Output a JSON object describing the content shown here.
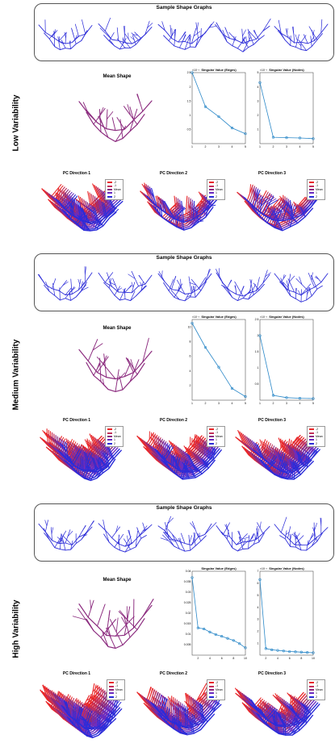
{
  "figure": {
    "rows": [
      {
        "label": "Low Variability",
        "sample_title": "Sample Shape Graphs",
        "mean_title": "Mean Shape",
        "pc_titles": [
          "PC Direction 1",
          "PC Direction 2",
          "PC Direction 3"
        ],
        "legend": [
          "-2",
          "-1",
          "Mean",
          "1",
          "2"
        ]
      },
      {
        "label": "Medium Variability",
        "sample_title": "Sample Shape Graphs",
        "mean_title": "Mean Shape",
        "pc_titles": [
          "PC Direction 1",
          "PC Direction 2",
          "PC Direction 3"
        ],
        "legend": [
          "-2",
          "-1",
          "Mean",
          "1",
          "2"
        ]
      },
      {
        "label": "High Variability",
        "sample_title": "Sample Shape Graphs",
        "mean_title": "Mean Shape",
        "pc_titles": [
          "PC Direction 1",
          "PC Direction 2",
          "PC Direction 3"
        ],
        "legend": [
          "-2",
          "-1",
          "Mean",
          "1",
          "2"
        ]
      }
    ],
    "colors": {
      "shape": "#2c2cd8",
      "mean": "#8b2a7e",
      "neg": "#e8282a",
      "chart": "#2b88c8"
    }
  },
  "chart_data": [
    {
      "type": "line",
      "title": "Singular Value (Edges)",
      "exponent_label": "×10⁻³",
      "x": [
        1,
        2,
        3,
        4,
        5
      ],
      "y": [
        2.5,
        1.3,
        0.95,
        0.55,
        0.35
      ],
      "xlim": [
        1,
        5
      ],
      "ylim": [
        0,
        2.5
      ],
      "xticks": [
        1,
        2,
        3,
        4,
        5
      ],
      "yticks": [
        0.5,
        1,
        1.5,
        2,
        2.5
      ]
    },
    {
      "type": "line",
      "title": "Singular Value (Nodes)",
      "exponent_label": "×10⁻³",
      "x": [
        1,
        2,
        3,
        4,
        5
      ],
      "y": [
        4.3,
        0.45,
        0.42,
        0.4,
        0.35
      ],
      "xlim": [
        1,
        5
      ],
      "ylim": [
        0,
        5
      ],
      "xticks": [
        1,
        2,
        3,
        4,
        5
      ],
      "yticks": [
        1,
        2,
        3,
        4,
        5
      ]
    },
    {
      "type": "line",
      "title": "Singular Value (Edges)",
      "exponent_label": "×10⁻³",
      "x": [
        1,
        2,
        3,
        4,
        5
      ],
      "y": [
        10.5,
        7.2,
        4.5,
        1.6,
        0.5
      ],
      "xlim": [
        1,
        5
      ],
      "ylim": [
        0,
        11
      ],
      "xticks": [
        1,
        2,
        3,
        4,
        5
      ],
      "yticks": [
        2,
        4,
        6,
        8,
        10
      ]
    },
    {
      "type": "line",
      "title": "Singular Value (Nodes)",
      "exponent_label": "×10⁻³",
      "x": [
        1,
        2,
        3,
        4,
        5
      ],
      "y": [
        2.0,
        0.15,
        0.08,
        0.06,
        0.05
      ],
      "xlim": [
        1,
        5
      ],
      "ylim": [
        0,
        2.5
      ],
      "xticks": [
        1,
        2,
        3,
        4,
        5
      ],
      "yticks": [
        0.5,
        1,
        1.5,
        2,
        2.5
      ]
    },
    {
      "type": "line",
      "title": "Singular Value (Edges)",
      "exponent_label": "",
      "x": [
        1,
        2,
        3,
        4,
        5,
        6,
        7,
        8,
        9,
        10
      ],
      "y": [
        0.037,
        0.013,
        0.0125,
        0.011,
        0.0098,
        0.009,
        0.008,
        0.007,
        0.0055,
        0.0035
      ],
      "xlim": [
        1,
        10
      ],
      "ylim": [
        0,
        0.04
      ],
      "xticks": [
        2,
        4,
        6,
        8,
        10
      ],
      "yticks": [
        0.005,
        0.01,
        0.015,
        0.02,
        0.025,
        0.03,
        0.035,
        0.04
      ]
    },
    {
      "type": "line",
      "title": "Singular Value (Nodes)",
      "exponent_label": "×10⁻³",
      "x": [
        1,
        2,
        3,
        4,
        5,
        6,
        7,
        8,
        9,
        10
      ],
      "y": [
        6.3,
        0.55,
        0.45,
        0.4,
        0.35,
        0.3,
        0.28,
        0.25,
        0.22,
        0.2
      ],
      "xlim": [
        1,
        10
      ],
      "ylim": [
        0,
        7
      ],
      "xticks": [
        2,
        4,
        6,
        8,
        10
      ],
      "yticks": [
        1,
        2,
        3,
        4,
        5,
        6,
        7
      ]
    }
  ]
}
